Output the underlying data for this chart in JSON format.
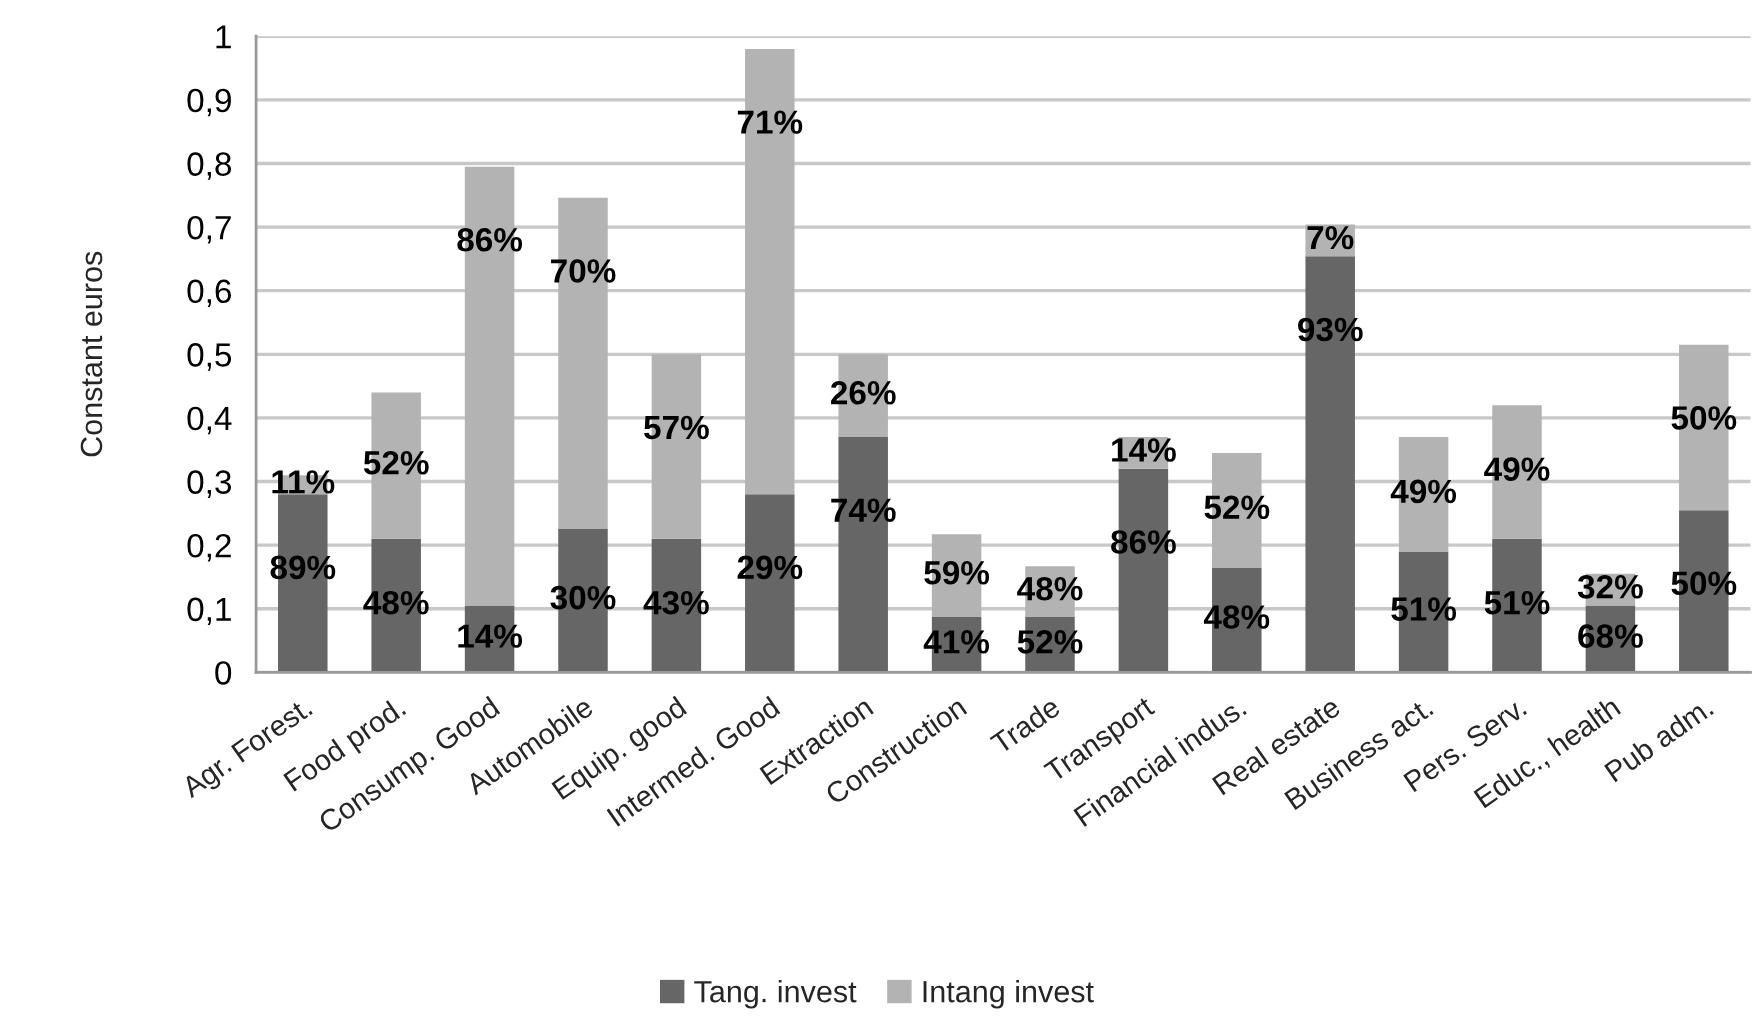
{
  "chart_data": {
    "type": "bar",
    "stacked": true,
    "categories": [
      "Agr. Forest.",
      "Food prod.",
      "Consump. Good",
      "Automobile",
      "Equip. good",
      "Intermed. Good",
      "Extraction",
      "Construction",
      "Trade",
      "Transport",
      "Financial indus.",
      "Real estate",
      "Business act.",
      "Pers. Serv.",
      "Educ., health",
      "Pub adm."
    ],
    "series": [
      {
        "name": "Tang. invest",
        "color": "#666666",
        "values": [
          0.28,
          0.21,
          0.105,
          0.226,
          0.21,
          0.28,
          0.37,
          0.087,
          0.087,
          0.32,
          0.165,
          0.654,
          0.19,
          0.21,
          0.105,
          0.255
        ]
      },
      {
        "name": "Intang invest",
        "color": "#b3b3b3",
        "values": [
          0.03,
          0.23,
          0.69,
          0.52,
          0.29,
          0.7,
          0.13,
          0.13,
          0.08,
          0.05,
          0.18,
          0.05,
          0.18,
          0.21,
          0.05,
          0.26
        ]
      }
    ],
    "annotations": [
      {
        "text": "89%",
        "x": "Agr. Forest.",
        "y": 0.28
      },
      {
        "text": "11%",
        "x": "Agr. Forest.",
        "y": 0.31
      },
      {
        "text": "48%",
        "x": "Food prod.",
        "y": 0.21
      },
      {
        "text": "52%",
        "x": "Food prod.",
        "y": 0.44
      },
      {
        "text": "14%",
        "x": "Consump. Good",
        "y": 0.105
      },
      {
        "text": "86%",
        "x": "Consump. Good",
        "y": 0.795
      },
      {
        "text": "30%",
        "x": "Automobile",
        "y": 0.226
      },
      {
        "text": "70%",
        "x": "Automobile",
        "y": 0.746
      },
      {
        "text": "43%",
        "x": "Equip. good",
        "y": 0.21
      },
      {
        "text": "57%",
        "x": "Equip. good",
        "y": 0.5
      },
      {
        "text": "29%",
        "x": "Intermed. Good",
        "y": 0.28
      },
      {
        "text": "71%",
        "x": "Intermed. Good",
        "y": 0.98
      },
      {
        "text": "74%",
        "x": "Extraction",
        "y": 0.37
      },
      {
        "text": "26%",
        "x": "Extraction",
        "y": 0.5
      },
      {
        "text": "41%",
        "x": "Construction",
        "y": 0.087
      },
      {
        "text": "59%",
        "x": "Construction",
        "y": 0.217
      },
      {
        "text": "52%",
        "x": "Trade",
        "y": 0.087
      },
      {
        "text": "48%",
        "x": "Trade",
        "y": 0.167
      },
      {
        "text": "86%",
        "x": "Transport",
        "y": 0.32
      },
      {
        "text": "14%",
        "x": "Transport",
        "y": 0.37
      },
      {
        "text": "48%",
        "x": "Financial indus.",
        "y": 0.165
      },
      {
        "text": "52%",
        "x": "Financial indus.",
        "y": 0.345
      },
      {
        "text": "93%",
        "x": "Real estate",
        "y": 0.654
      },
      {
        "text": "7%",
        "x": "Real estate",
        "y": 0.704
      },
      {
        "text": "51%",
        "x": "Business act.",
        "y": 0.19
      },
      {
        "text": "49%",
        "x": "Business act.",
        "y": 0.37
      },
      {
        "text": "51%",
        "x": "Pers. Serv.",
        "y": 0.21
      },
      {
        "text": "49%",
        "x": "Pers. Serv.",
        "y": 0.42
      },
      {
        "text": "68%",
        "x": "Educ., health",
        "y": 0.105
      },
      {
        "text": "32%",
        "x": "Educ., health",
        "y": 0.155
      },
      {
        "text": "50%",
        "x": "Pub adm.",
        "y": 0.255
      },
      {
        "text": "50%",
        "x": "Pub adm.",
        "y": 0.515
      }
    ],
    "ylabel": "Constant euros",
    "ylim": [
      0,
      1
    ],
    "yticks": [
      0,
      {
        "value": 0.1,
        "label": "0,1"
      },
      {
        "value": 0.2,
        "label": "0,2"
      },
      {
        "value": 0.3,
        "label": "0,3"
      },
      {
        "value": 0.4,
        "label": "0,4"
      },
      {
        "value": 0.5,
        "label": "0,5"
      },
      {
        "value": 0.6,
        "label": "0,6"
      },
      {
        "value": 0.7,
        "label": "0,7"
      },
      {
        "value": 0.8,
        "label": "0,8"
      },
      {
        "value": 0.9,
        "label": "0,9"
      },
      1
    ],
    "grid": "y",
    "legend": "bottom"
  }
}
